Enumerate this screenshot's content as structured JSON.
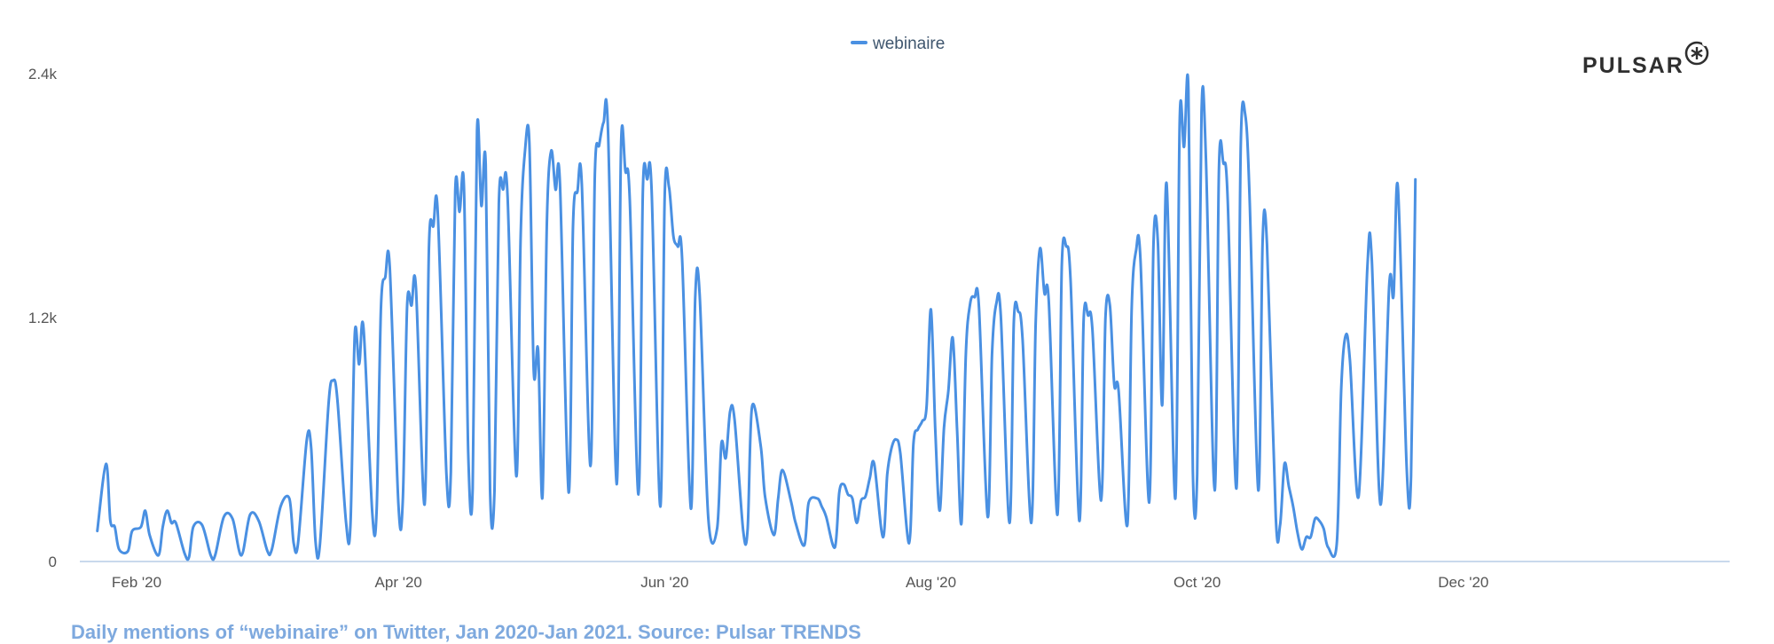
{
  "brand": {
    "name": "PULSAR",
    "logo_icon": "asterisk-circle-icon"
  },
  "caption": "Daily mentions of “webinaire” on Twitter, Jan 2020-Jan 2021. Source: Pulsar TRENDS",
  "colors": {
    "series": "#4a90e2",
    "axis": "#c9d9ec",
    "text": "#555555"
  },
  "chart_data": {
    "type": "line",
    "title": "",
    "xlabel": "",
    "ylabel": "",
    "ylim": [
      0,
      2400
    ],
    "yticks": [
      {
        "value": 0,
        "label": "0"
      },
      {
        "value": 1200,
        "label": "1.2k"
      },
      {
        "value": 2400,
        "label": "2.4k"
      }
    ],
    "xlim": [
      "2020-01-19",
      "2021-01-31"
    ],
    "xticks": [
      {
        "date": "2020-02-01",
        "label": "Feb '20"
      },
      {
        "date": "2020-04-01",
        "label": "Apr '20"
      },
      {
        "date": "2020-06-01",
        "label": "Jun '20"
      },
      {
        "date": "2020-08-01",
        "label": "Aug '20"
      },
      {
        "date": "2020-10-01",
        "label": "Oct '20"
      },
      {
        "date": "2020-12-01",
        "label": "Dec '20"
      }
    ],
    "grid": false,
    "legend": "top-center",
    "series": [
      {
        "name": "webinaire",
        "color": "#4a90e2",
        "points": [
          [
            "2020-01-23",
            150
          ],
          [
            "2020-01-25",
            480
          ],
          [
            "2020-01-26",
            200
          ],
          [
            "2020-01-27",
            170
          ],
          [
            "2020-01-28",
            60
          ],
          [
            "2020-01-30",
            50
          ],
          [
            "2020-01-31",
            150
          ],
          [
            "2020-02-02",
            170
          ],
          [
            "2020-02-03",
            250
          ],
          [
            "2020-02-04",
            130
          ],
          [
            "2020-02-06",
            30
          ],
          [
            "2020-02-07",
            170
          ],
          [
            "2020-02-08",
            250
          ],
          [
            "2020-02-09",
            190
          ],
          [
            "2020-02-10",
            190
          ],
          [
            "2020-02-12",
            40
          ],
          [
            "2020-02-13",
            20
          ],
          [
            "2020-02-14",
            170
          ],
          [
            "2020-02-16",
            180
          ],
          [
            "2020-02-18",
            30
          ],
          [
            "2020-02-19",
            30
          ],
          [
            "2020-02-21",
            220
          ],
          [
            "2020-02-23",
            210
          ],
          [
            "2020-02-25",
            30
          ],
          [
            "2020-02-27",
            230
          ],
          [
            "2020-02-29",
            200
          ],
          [
            "2020-03-02",
            50
          ],
          [
            "2020-03-03",
            60
          ],
          [
            "2020-03-05",
            270
          ],
          [
            "2020-03-07",
            310
          ],
          [
            "2020-03-08",
            90
          ],
          [
            "2020-03-09",
            90
          ],
          [
            "2020-03-11",
            600
          ],
          [
            "2020-03-12",
            560
          ],
          [
            "2020-03-13",
            100
          ],
          [
            "2020-03-14",
            80
          ],
          [
            "2020-03-16",
            780
          ],
          [
            "2020-03-17",
            890
          ],
          [
            "2020-03-18",
            800
          ],
          [
            "2020-03-20",
            190
          ],
          [
            "2020-03-21",
            180
          ],
          [
            "2020-03-22",
            1120
          ],
          [
            "2020-03-23",
            970
          ],
          [
            "2020-03-24",
            1150
          ],
          [
            "2020-03-26",
            240
          ],
          [
            "2020-03-27",
            250
          ],
          [
            "2020-03-28",
            1250
          ],
          [
            "2020-03-29",
            1400
          ],
          [
            "2020-03-30",
            1450
          ],
          [
            "2020-04-01",
            280
          ],
          [
            "2020-04-02",
            300
          ],
          [
            "2020-04-03",
            1260
          ],
          [
            "2020-04-04",
            1260
          ],
          [
            "2020-04-05",
            1350
          ],
          [
            "2020-04-07",
            280
          ],
          [
            "2020-04-08",
            1560
          ],
          [
            "2020-04-09",
            1650
          ],
          [
            "2020-04-10",
            1720
          ],
          [
            "2020-04-12",
            430
          ],
          [
            "2020-04-13",
            440
          ],
          [
            "2020-04-14",
            1820
          ],
          [
            "2020-04-15",
            1720
          ],
          [
            "2020-04-16",
            1850
          ],
          [
            "2020-04-17",
            530
          ],
          [
            "2020-04-18",
            360
          ],
          [
            "2020-04-19",
            2120
          ],
          [
            "2020-04-20",
            1750
          ],
          [
            "2020-04-21",
            1950
          ],
          [
            "2020-04-22",
            350
          ],
          [
            "2020-04-23",
            350
          ],
          [
            "2020-04-24",
            1760
          ],
          [
            "2020-04-25",
            1830
          ],
          [
            "2020-04-26",
            1800
          ],
          [
            "2020-04-28",
            420
          ],
          [
            "2020-04-29",
            1600
          ],
          [
            "2020-04-30",
            2020
          ],
          [
            "2020-05-01",
            2060
          ],
          [
            "2020-05-02",
            940
          ],
          [
            "2020-05-03",
            1040
          ],
          [
            "2020-05-04",
            320
          ],
          [
            "2020-05-05",
            1660
          ],
          [
            "2020-05-06",
            2020
          ],
          [
            "2020-05-07",
            1830
          ],
          [
            "2020-05-08",
            1860
          ],
          [
            "2020-05-10",
            340
          ],
          [
            "2020-05-11",
            1650
          ],
          [
            "2020-05-12",
            1820
          ],
          [
            "2020-05-13",
            1860
          ],
          [
            "2020-05-15",
            470
          ],
          [
            "2020-05-16",
            1900
          ],
          [
            "2020-05-17",
            2050
          ],
          [
            "2020-05-18",
            2160
          ],
          [
            "2020-05-19",
            2130
          ],
          [
            "2020-05-21",
            380
          ],
          [
            "2020-05-22",
            2050
          ],
          [
            "2020-05-23",
            1920
          ],
          [
            "2020-05-24",
            1780
          ],
          [
            "2020-05-26",
            330
          ],
          [
            "2020-05-27",
            1830
          ],
          [
            "2020-05-28",
            1880
          ],
          [
            "2020-05-29",
            1830
          ],
          [
            "2020-05-31",
            270
          ],
          [
            "2020-06-01",
            1800
          ],
          [
            "2020-06-02",
            1840
          ],
          [
            "2020-06-03",
            1600
          ],
          [
            "2020-06-04",
            1550
          ],
          [
            "2020-06-05",
            1490
          ],
          [
            "2020-06-07",
            260
          ],
          [
            "2020-06-08",
            1300
          ],
          [
            "2020-06-09",
            1320
          ],
          [
            "2020-06-11",
            210
          ],
          [
            "2020-06-13",
            160
          ],
          [
            "2020-06-14",
            580
          ],
          [
            "2020-06-15",
            510
          ],
          [
            "2020-06-16",
            740
          ],
          [
            "2020-06-17",
            700
          ],
          [
            "2020-06-19",
            150
          ],
          [
            "2020-06-20",
            160
          ],
          [
            "2020-06-21",
            760
          ],
          [
            "2020-06-23",
            570
          ],
          [
            "2020-06-24",
            320
          ],
          [
            "2020-06-26",
            130
          ],
          [
            "2020-06-27",
            310
          ],
          [
            "2020-06-28",
            450
          ],
          [
            "2020-06-30",
            290
          ],
          [
            "2020-07-01",
            190
          ],
          [
            "2020-07-03",
            80
          ],
          [
            "2020-07-04",
            290
          ],
          [
            "2020-07-06",
            310
          ],
          [
            "2020-07-07",
            270
          ],
          [
            "2020-07-08",
            220
          ],
          [
            "2020-07-10",
            70
          ],
          [
            "2020-07-11",
            340
          ],
          [
            "2020-07-12",
            380
          ],
          [
            "2020-07-13",
            330
          ],
          [
            "2020-07-14",
            310
          ],
          [
            "2020-07-15",
            190
          ],
          [
            "2020-07-16",
            300
          ],
          [
            "2020-07-17",
            320
          ],
          [
            "2020-07-18",
            410
          ],
          [
            "2020-07-19",
            480
          ],
          [
            "2020-07-21",
            120
          ],
          [
            "2020-07-22",
            430
          ],
          [
            "2020-07-23",
            560
          ],
          [
            "2020-07-24",
            600
          ],
          [
            "2020-07-25",
            530
          ],
          [
            "2020-07-27",
            90
          ],
          [
            "2020-07-28",
            580
          ],
          [
            "2020-07-29",
            650
          ],
          [
            "2020-07-30",
            690
          ],
          [
            "2020-07-31",
            760
          ],
          [
            "2020-08-01",
            1240
          ],
          [
            "2020-08-02",
            650
          ],
          [
            "2020-08-03",
            250
          ],
          [
            "2020-08-04",
            660
          ],
          [
            "2020-08-05",
            840
          ],
          [
            "2020-08-06",
            1100
          ],
          [
            "2020-08-07",
            650
          ],
          [
            "2020-08-08",
            190
          ],
          [
            "2020-08-09",
            1020
          ],
          [
            "2020-08-10",
            1270
          ],
          [
            "2020-08-11",
            1300
          ],
          [
            "2020-08-12",
            1250
          ],
          [
            "2020-08-14",
            220
          ],
          [
            "2020-08-15",
            1020
          ],
          [
            "2020-08-16",
            1270
          ],
          [
            "2020-08-17",
            1210
          ],
          [
            "2020-08-19",
            190
          ],
          [
            "2020-08-20",
            1180
          ],
          [
            "2020-08-21",
            1230
          ],
          [
            "2020-08-22",
            1090
          ],
          [
            "2020-08-24",
            190
          ],
          [
            "2020-08-25",
            1170
          ],
          [
            "2020-08-26",
            1540
          ],
          [
            "2020-08-27",
            1320
          ],
          [
            "2020-08-28",
            1280
          ],
          [
            "2020-08-30",
            230
          ],
          [
            "2020-08-31",
            1460
          ],
          [
            "2020-09-01",
            1550
          ],
          [
            "2020-09-02",
            1380
          ],
          [
            "2020-09-04",
            200
          ],
          [
            "2020-09-05",
            1190
          ],
          [
            "2020-09-06",
            1210
          ],
          [
            "2020-09-07",
            1140
          ],
          [
            "2020-09-09",
            300
          ],
          [
            "2020-09-10",
            1200
          ],
          [
            "2020-09-11",
            1260
          ],
          [
            "2020-09-12",
            870
          ],
          [
            "2020-09-13",
            840
          ],
          [
            "2020-09-15",
            180
          ],
          [
            "2020-09-16",
            1250
          ],
          [
            "2020-09-17",
            1530
          ],
          [
            "2020-09-18",
            1490
          ],
          [
            "2020-09-20",
            290
          ],
          [
            "2020-09-21",
            1570
          ],
          [
            "2020-09-22",
            1570
          ],
          [
            "2020-09-23",
            770
          ],
          [
            "2020-09-24",
            1860
          ],
          [
            "2020-09-26",
            310
          ],
          [
            "2020-09-27",
            2170
          ],
          [
            "2020-09-28",
            2040
          ],
          [
            "2020-09-29",
            2320
          ],
          [
            "2020-09-30",
            450
          ],
          [
            "2020-10-01",
            430
          ],
          [
            "2020-10-02",
            2210
          ],
          [
            "2020-10-03",
            1990
          ],
          [
            "2020-10-05",
            350
          ],
          [
            "2020-10-06",
            1940
          ],
          [
            "2020-10-07",
            1960
          ],
          [
            "2020-10-08",
            1780
          ],
          [
            "2020-10-10",
            360
          ],
          [
            "2020-10-11",
            2060
          ],
          [
            "2020-10-12",
            2200
          ],
          [
            "2020-10-13",
            1800
          ],
          [
            "2020-10-15",
            350
          ],
          [
            "2020-10-16",
            1580
          ],
          [
            "2020-10-17",
            1560
          ],
          [
            "2020-10-19",
            220
          ],
          [
            "2020-10-20",
            180
          ],
          [
            "2020-10-21",
            480
          ],
          [
            "2020-10-22",
            370
          ],
          [
            "2020-10-23",
            270
          ],
          [
            "2020-10-24",
            140
          ],
          [
            "2020-10-25",
            60
          ],
          [
            "2020-10-26",
            120
          ],
          [
            "2020-10-27",
            120
          ],
          [
            "2020-10-28",
            210
          ],
          [
            "2020-10-29",
            200
          ],
          [
            "2020-10-30",
            160
          ],
          [
            "2020-10-31",
            70
          ],
          [
            "2020-11-02",
            90
          ],
          [
            "2020-11-03",
            850
          ],
          [
            "2020-11-04",
            1110
          ],
          [
            "2020-11-05",
            990
          ],
          [
            "2020-11-07",
            320
          ],
          [
            "2020-11-09",
            1450
          ],
          [
            "2020-11-10",
            1490
          ],
          [
            "2020-11-12",
            280
          ],
          [
            "2020-11-14",
            1360
          ],
          [
            "2020-11-15",
            1310
          ],
          [
            "2020-11-16",
            1840
          ],
          [
            "2020-11-18",
            460
          ],
          [
            "2020-11-19",
            420
          ],
          [
            "2020-11-20",
            1880
          ]
        ]
      }
    ]
  }
}
